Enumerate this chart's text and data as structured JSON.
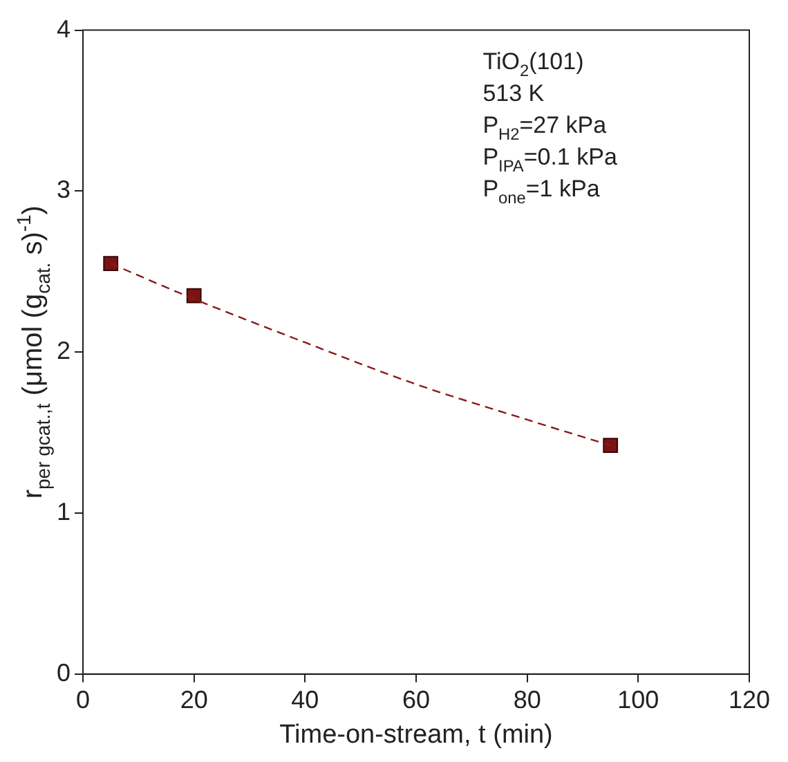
{
  "chart_data": {
    "type": "scatter",
    "xlabel": "Time-on-stream, t (min)",
    "ylabel": "r$_{per gcat.,t}$ (μmol (g$_{cat.}$ s)$^{-1}$)",
    "series": [
      {
        "type": "line",
        "color": "#8b1a1a",
        "line_style": "dashed",
        "marker": "none",
        "x": [
          5,
          20,
          40,
          60,
          80,
          95
        ],
        "values": [
          2.55,
          2.33,
          2.06,
          1.8,
          1.58,
          1.42
        ]
      },
      {
        "color": "#7a1414",
        "marker": "square",
        "x": [
          5,
          20,
          95
        ],
        "values": [
          2.55,
          2.35,
          1.42
        ]
      }
    ],
    "xlim": [
      0,
      120
    ],
    "xticks": [
      0,
      20,
      40,
      60,
      80,
      100,
      120
    ],
    "ylim": [
      0,
      4
    ],
    "yticks": [
      0,
      1,
      2,
      3,
      4
    ],
    "grid": false,
    "legend": false,
    "annotations": [
      "TiO$_{2}$(101)",
      "513 K",
      "P$_{H2}$=27 kPa",
      "P$_{IPA}$=0.1 kPa",
      "P$_{one}$=1 kPa"
    ]
  }
}
